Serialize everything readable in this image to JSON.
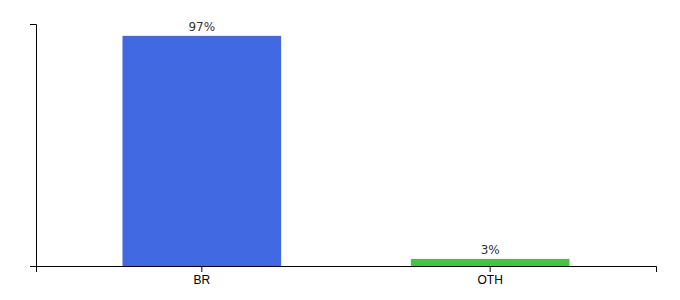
{
  "chart_data": {
    "type": "bar",
    "categories": [
      "BR",
      "OTH"
    ],
    "values": [
      97,
      3
    ],
    "colors": [
      "#4169E1",
      "#3DC83D"
    ],
    "ylim": [
      0,
      102
    ],
    "data_labels": true,
    "value_labels": [
      "97%",
      "3%"
    ],
    "tick_labels": "x"
  }
}
